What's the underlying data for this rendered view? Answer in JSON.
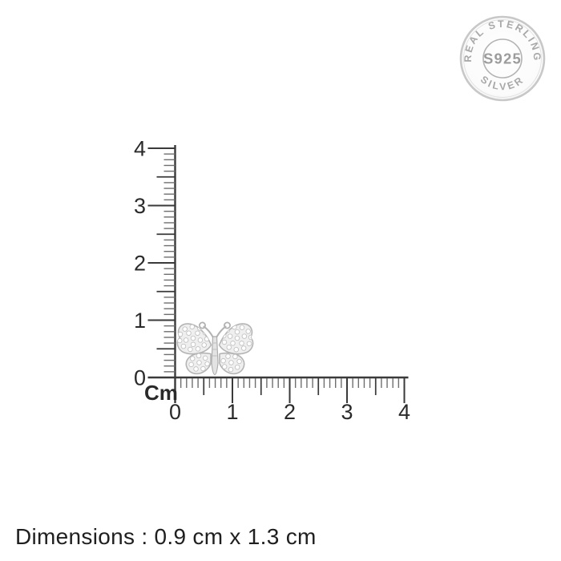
{
  "seal": {
    "arc_top_text": "REAL STERLING",
    "arc_bottom_text": "SILVER",
    "center_text": "S925",
    "text_color": "#a8a8a8",
    "center_text_color": "#9c9c9c",
    "ring_color": "#c8c8c8",
    "inner_ring_color": "#b3b3b3"
  },
  "ruler": {
    "unit_label": "Cm",
    "vertical_axis": {
      "labels": [
        "0",
        "1",
        "2",
        "3",
        "4"
      ],
      "min": 0,
      "max": 4
    },
    "horizontal_axis": {
      "labels": [
        "0",
        "1",
        "2",
        "3",
        "4"
      ],
      "min": 0,
      "max": 4
    },
    "minor_ticks_per_unit": 10,
    "line_color": "#3a3a3a",
    "minor_tick_color": "#6f6f6f",
    "label_color": "#2a2a2a"
  },
  "product": {
    "width_cm": "1.3",
    "height_cm": "0.9"
  },
  "footer": {
    "dimensions_text": "Dimensions : 0.9 cm x 1.3 cm"
  }
}
